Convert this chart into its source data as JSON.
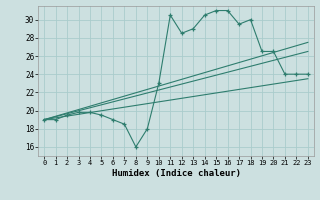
{
  "xlabel": "Humidex (Indice chaleur)",
  "bg_color": "#cce0e0",
  "line_color": "#2e7d6e",
  "grid_color": "#aacccc",
  "x_ticks": [
    0,
    1,
    2,
    3,
    4,
    5,
    6,
    7,
    8,
    9,
    10,
    11,
    12,
    13,
    14,
    15,
    16,
    17,
    18,
    19,
    20,
    21,
    22,
    23
  ],
  "ylim": [
    15.0,
    31.5
  ],
  "yticks": [
    16,
    18,
    20,
    22,
    24,
    26,
    28,
    30
  ],
  "series1_x": [
    0,
    1,
    2,
    3,
    4,
    5,
    6,
    7,
    8,
    9,
    10,
    11,
    12,
    13,
    14,
    15,
    16,
    17,
    18,
    19,
    20,
    21,
    22,
    23
  ],
  "series1_y": [
    19,
    19,
    19.5,
    19.8,
    19.8,
    19.5,
    19,
    18.5,
    16,
    18,
    23,
    30.5,
    28.5,
    29,
    30.5,
    31,
    31,
    29.5,
    30,
    26.5,
    26.5,
    24,
    24,
    24
  ],
  "series2_x": [
    0,
    23
  ],
  "series2_y": [
    19.0,
    27.5
  ],
  "series3_x": [
    0,
    23
  ],
  "series3_y": [
    19.0,
    26.5
  ],
  "series4_x": [
    0,
    23
  ],
  "series4_y": [
    19.0,
    23.5
  ]
}
